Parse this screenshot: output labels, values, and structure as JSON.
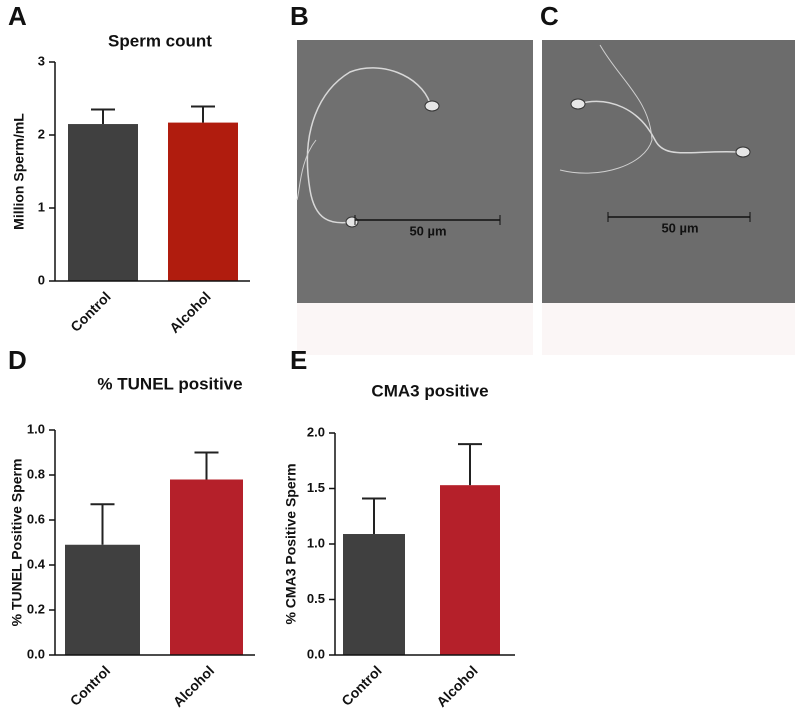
{
  "chart_data": [
    {
      "type": "bar",
      "panel": "A",
      "title": "Sperm count",
      "y_label": "Million Sperm/mL",
      "categories": [
        "Control",
        "Alcohol"
      ],
      "values": [
        2.15,
        2.17
      ],
      "errors": [
        0.2,
        0.22
      ],
      "colors": [
        "#404040",
        "#b01c0e"
      ],
      "ylim": [
        0,
        3
      ],
      "yticks": [
        0,
        1,
        2,
        3
      ]
    },
    {
      "type": "bar",
      "panel": "D",
      "title": "% TUNEL positive",
      "y_label": "% TUNEL Positive Sperm",
      "categories": [
        "Control",
        "Alcohol"
      ],
      "values": [
        0.49,
        0.78
      ],
      "errors": [
        0.18,
        0.12
      ],
      "colors": [
        "#404040",
        "#b5202a"
      ],
      "ylim": [
        0,
        1
      ],
      "yticks": [
        {
          "value": 0,
          "label": "0.0"
        },
        0.2,
        0.4,
        0.6,
        0.8,
        {
          "value": 1,
          "label": "1.0"
        }
      ]
    },
    {
      "type": "bar",
      "panel": "E",
      "title": "CMA3 positive",
      "y_label": "% CMA3 Positive Sperm",
      "categories": [
        "Control",
        "Alcohol"
      ],
      "values": [
        1.09,
        1.53
      ],
      "errors": [
        0.32,
        0.37
      ],
      "colors": [
        "#404040",
        "#b5202a"
      ],
      "ylim": [
        0,
        2
      ],
      "yticks": [
        {
          "value": 0,
          "label": "0.0"
        },
        0.5,
        {
          "value": 1,
          "label": "1.0"
        },
        1.5,
        {
          "value": 2,
          "label": "2.0"
        }
      ]
    }
  ],
  "images": [
    {
      "panel": "B",
      "scale_bar_label": "50 µm"
    },
    {
      "panel": "C",
      "scale_bar_label": "50 µm"
    }
  ]
}
